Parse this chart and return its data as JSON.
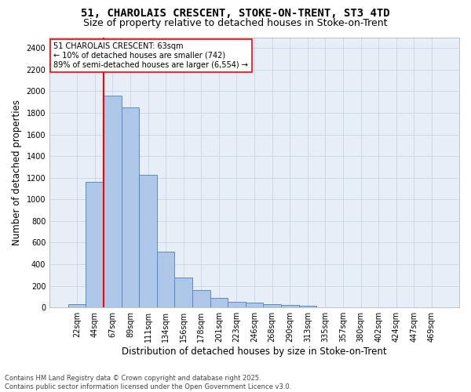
{
  "title": "51, CHAROLAIS CRESCENT, STOKE-ON-TRENT, ST3 4TD",
  "subtitle": "Size of property relative to detached houses in Stoke-on-Trent",
  "xlabel": "Distribution of detached houses by size in Stoke-on-Trent",
  "ylabel": "Number of detached properties",
  "categories": [
    "22sqm",
    "44sqm",
    "67sqm",
    "89sqm",
    "111sqm",
    "134sqm",
    "156sqm",
    "178sqm",
    "201sqm",
    "223sqm",
    "246sqm",
    "268sqm",
    "290sqm",
    "313sqm",
    "335sqm",
    "357sqm",
    "380sqm",
    "402sqm",
    "424sqm",
    "447sqm",
    "469sqm"
  ],
  "values": [
    30,
    1160,
    1960,
    1850,
    1230,
    515,
    275,
    160,
    90,
    50,
    45,
    30,
    20,
    15,
    5,
    5,
    5,
    5,
    5,
    5,
    5
  ],
  "bar_color": "#aec6e8",
  "bar_edge_color": "#5b8cc8",
  "bar_linewidth": 0.7,
  "vline_color": "red",
  "vline_linewidth": 1.5,
  "annotation_text": "51 CHAROLAIS CRESCENT: 63sqm\n← 10% of detached houses are smaller (742)\n89% of semi-detached houses are larger (6,554) →",
  "annotation_box_color": "white",
  "annotation_box_edge": "red",
  "ylim": [
    0,
    2500
  ],
  "yticks": [
    0,
    200,
    400,
    600,
    800,
    1000,
    1200,
    1400,
    1600,
    1800,
    2000,
    2200,
    2400
  ],
  "grid_color": "#c8d4e8",
  "bg_color": "#e8eef8",
  "footer_text": "Contains HM Land Registry data © Crown copyright and database right 2025.\nContains public sector information licensed under the Open Government Licence v3.0.",
  "title_fontsize": 10,
  "subtitle_fontsize": 9,
  "axis_label_fontsize": 8.5,
  "tick_fontsize": 7,
  "annotation_fontsize": 7,
  "footer_fontsize": 6
}
